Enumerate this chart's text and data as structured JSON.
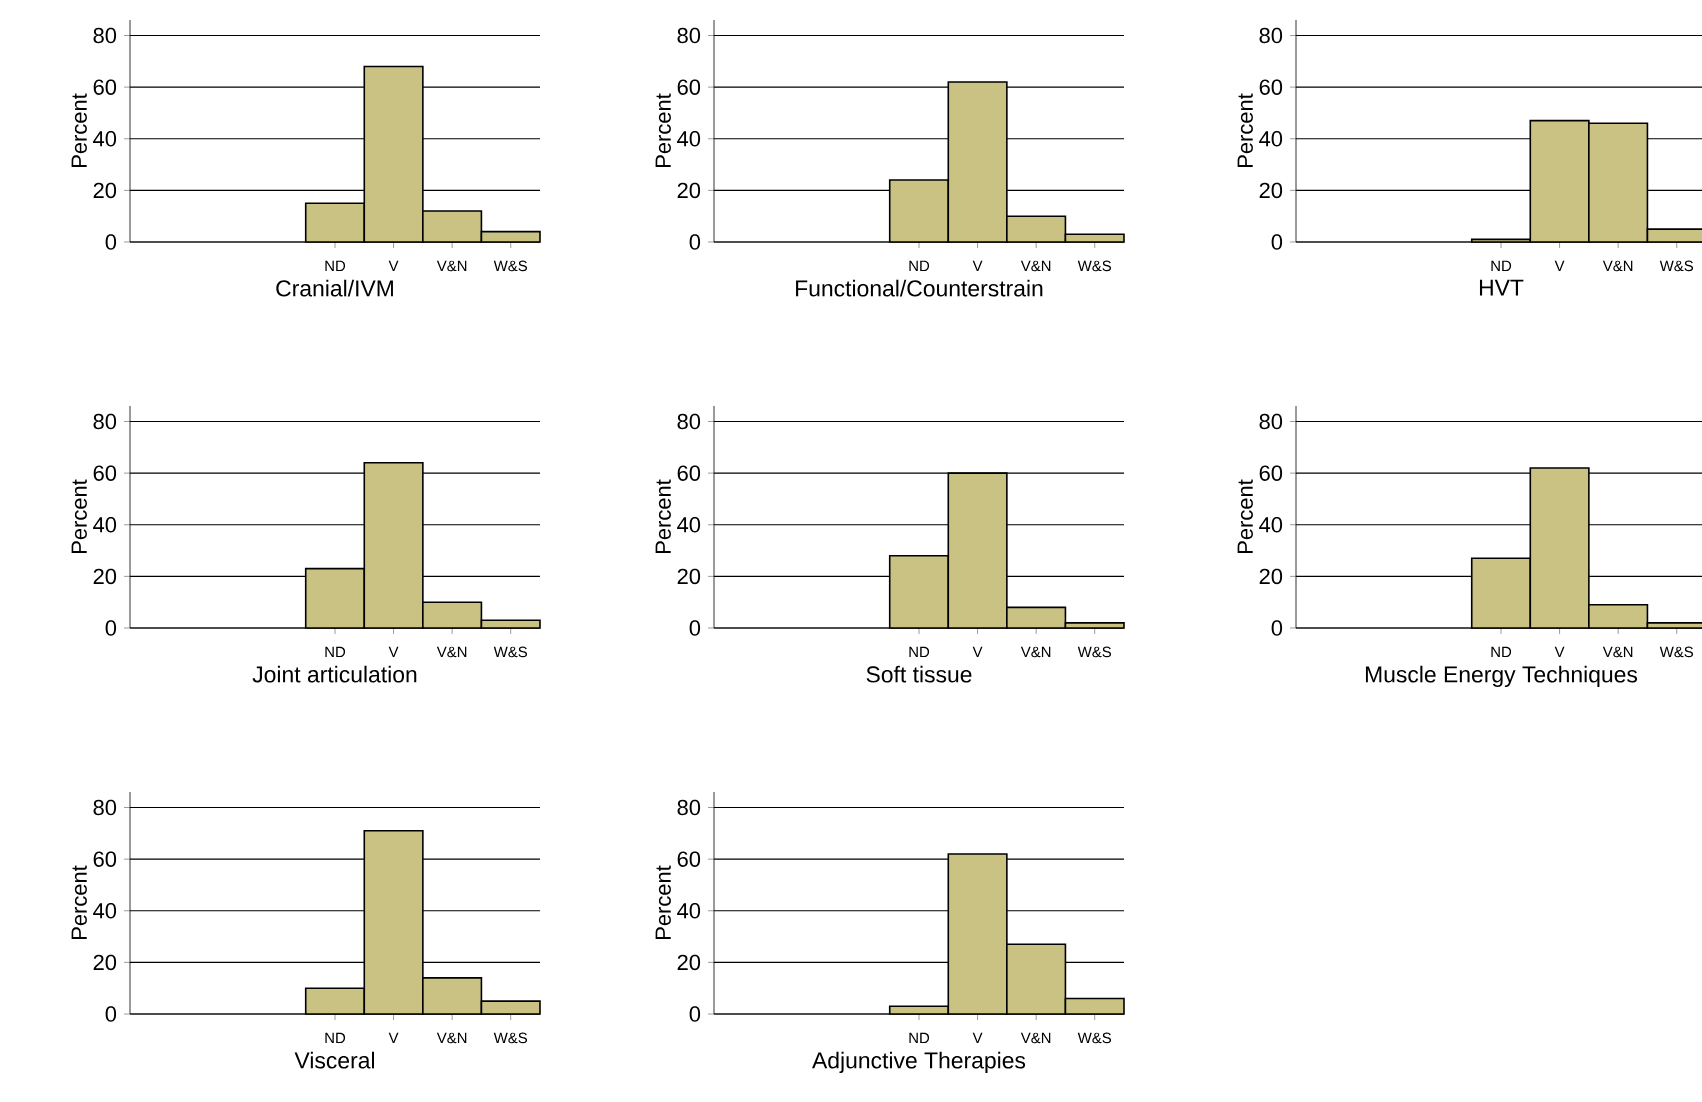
{
  "chart_data": [
    {
      "type": "bar",
      "xlabel": "Cranial/IVM",
      "ylabel": "Percent",
      "categories": [
        null,
        null,
        null,
        "ND",
        "V",
        "V&N",
        "W&S"
      ],
      "values": [
        null,
        null,
        null,
        15,
        68,
        12,
        4
      ],
      "color": "#c9c283",
      "ylim": [
        0,
        86
      ],
      "yticks": [
        0,
        20,
        40,
        60,
        80
      ],
      "grid": "y"
    },
    {
      "type": "bar",
      "xlabel": "Functional/Counterstrain",
      "ylabel": "Percent",
      "categories": [
        null,
        null,
        null,
        "ND",
        "V",
        "V&N",
        "W&S"
      ],
      "values": [
        null,
        null,
        null,
        24,
        62,
        10,
        3
      ],
      "color": "#c9c283",
      "ylim": [
        0,
        86
      ],
      "yticks": [
        0,
        20,
        40,
        60,
        80
      ],
      "grid": "y"
    },
    {
      "type": "bar",
      "xlabel": "HVT",
      "ylabel": "Percent",
      "categories": [
        null,
        null,
        null,
        "ND",
        "V",
        "V&N",
        "W&S"
      ],
      "values": [
        null,
        null,
        null,
        1,
        47,
        46,
        5
      ],
      "color": "#c9c283",
      "ylim": [
        0,
        86
      ],
      "yticks": [
        0,
        20,
        40,
        60,
        80
      ],
      "grid": "y"
    },
    {
      "type": "bar",
      "xlabel": "Joint articulation",
      "ylabel": "Percent",
      "categories": [
        null,
        null,
        null,
        "ND",
        "V",
        "V&N",
        "W&S"
      ],
      "values": [
        null,
        null,
        null,
        23,
        64,
        10,
        3
      ],
      "color": "#c9c283",
      "ylim": [
        0,
        86
      ],
      "yticks": [
        0,
        20,
        40,
        60,
        80
      ],
      "grid": "y"
    },
    {
      "type": "bar",
      "xlabel": "Soft tissue",
      "ylabel": "Percent",
      "categories": [
        null,
        null,
        null,
        "ND",
        "V",
        "V&N",
        "W&S"
      ],
      "values": [
        null,
        null,
        null,
        28,
        60,
        8,
        2
      ],
      "color": "#c9c283",
      "ylim": [
        0,
        86
      ],
      "yticks": [
        0,
        20,
        40,
        60,
        80
      ],
      "grid": "y"
    },
    {
      "type": "bar",
      "xlabel": "Muscle Energy Techniques",
      "ylabel": "Percent",
      "categories": [
        null,
        null,
        null,
        "ND",
        "V",
        "V&N",
        "W&S"
      ],
      "values": [
        null,
        null,
        null,
        27,
        62,
        9,
        2
      ],
      "color": "#c9c283",
      "ylim": [
        0,
        86
      ],
      "yticks": [
        0,
        20,
        40,
        60,
        80
      ],
      "grid": "y"
    },
    {
      "type": "bar",
      "xlabel": "Visceral",
      "ylabel": "Percent",
      "categories": [
        null,
        null,
        null,
        "ND",
        "V",
        "V&N",
        "W&S"
      ],
      "values": [
        null,
        null,
        null,
        10,
        71,
        14,
        5
      ],
      "color": "#c9c283",
      "ylim": [
        0,
        86
      ],
      "yticks": [
        0,
        20,
        40,
        60,
        80
      ],
      "grid": "y"
    },
    {
      "type": "bar",
      "xlabel": "Adjunctive Therapies",
      "ylabel": "Percent",
      "categories": [
        null,
        null,
        null,
        "ND",
        "V",
        "V&N",
        "W&S"
      ],
      "values": [
        null,
        null,
        null,
        3,
        62,
        27,
        6
      ],
      "color": "#c9c283",
      "ylim": [
        0,
        86
      ],
      "yticks": [
        0,
        20,
        40,
        60,
        80
      ],
      "grid": "y"
    }
  ]
}
